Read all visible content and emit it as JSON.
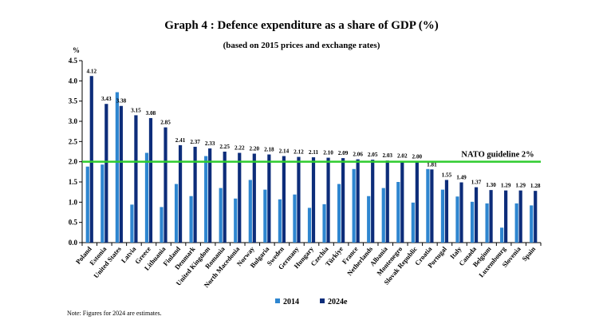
{
  "chart_data": {
    "type": "bar",
    "title": "Graph 4 : Defence expenditure as a share of GDP (%)",
    "subtitle": "(based on 2015 prices and exchange rates)",
    "ylabel": "%",
    "ylim": [
      0,
      4.5
    ],
    "yticks": [
      "0.0",
      "0.5",
      "1.0",
      "1.5",
      "2.0",
      "2.5",
      "3.0",
      "3.5",
      "4.0",
      "4.5"
    ],
    "grid": false,
    "legend_position": "bottom",
    "categories": [
      "Poland",
      "Estonia",
      "United States",
      "Latvia",
      "Greece",
      "Lithuania",
      "Finland",
      "Denmark",
      "United Kingdom",
      "Romania",
      "North Macedonia",
      "Norway",
      "Bulgaria",
      "Sweden",
      "Germany",
      "Hungary",
      "Czechia",
      "Türkiye",
      "France",
      "Netherlands",
      "Albania",
      "Montenegro",
      "Slovak Republic",
      "Croatia",
      "Portugal",
      "Italy",
      "Canada",
      "Belgium",
      "Luxembourg",
      "Slovenia",
      "Spain"
    ],
    "series": [
      {
        "name": "2014",
        "color": "#2e86d0",
        "values": [
          1.88,
          1.93,
          3.72,
          0.94,
          2.22,
          0.88,
          1.45,
          1.15,
          2.14,
          1.35,
          1.09,
          1.55,
          1.31,
          1.07,
          1.19,
          0.86,
          0.95,
          1.45,
          1.82,
          1.15,
          1.35,
          1.5,
          0.99,
          1.82,
          1.31,
          1.14,
          1.01,
          0.97,
          0.37,
          0.97,
          0.92
        ]
      },
      {
        "name": "2024e",
        "color": "#0d2d7a",
        "values": [
          4.12,
          3.43,
          3.38,
          3.15,
          3.08,
          2.85,
          2.41,
          2.37,
          2.33,
          2.25,
          2.22,
          2.2,
          2.18,
          2.14,
          2.12,
          2.11,
          2.1,
          2.09,
          2.06,
          2.05,
          2.03,
          2.02,
          2.0,
          1.81,
          1.55,
          1.49,
          1.37,
          1.3,
          1.29,
          1.29,
          1.28
        ],
        "labels": [
          "4.12",
          "3.43",
          "3.38",
          "3.15",
          "3.08",
          "2.85",
          "2.41",
          "2.37",
          "2.33",
          "2.25",
          "2.22",
          "2.20",
          "2.18",
          "2.14",
          "2.12",
          "2.11",
          "2.10",
          "2.09",
          "2.06",
          "2.05",
          "2.03",
          "2.02",
          "2.00",
          "1.81",
          "1.55",
          "1.49",
          "1.37",
          "1.30",
          "1.29",
          "1.29",
          "1.28"
        ]
      }
    ],
    "reference_line": {
      "value": 2.0,
      "label": "NATO guideline 2%",
      "color": "#2ecc2e"
    }
  },
  "footnote": "Note: Figures for 2024 are estimates."
}
